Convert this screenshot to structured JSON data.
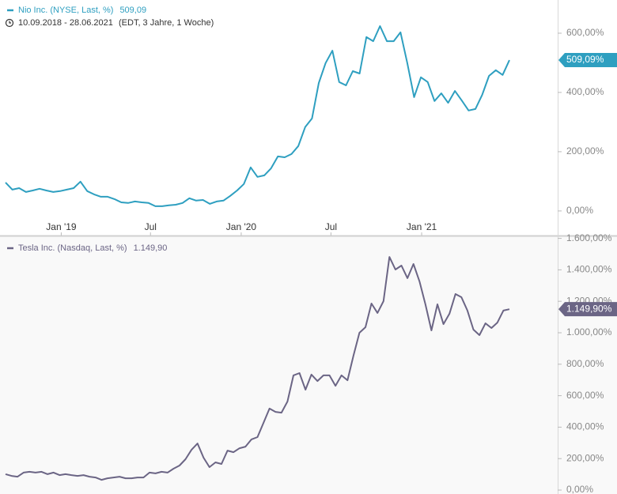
{
  "chart_data": [
    {
      "type": "line",
      "date_range": "10.09.2018 - 28.06.2021",
      "range_note": "(EDT, 3 Jahre, 1 Woche)",
      "series": [
        {
          "name": "Nio Inc. (NYSE, Last, %)",
          "color": "#2e9fc0",
          "last_value": 509.09,
          "last_legend_label": "509,09",
          "last_badge_label": "509,09%",
          "values": [
            96,
            72,
            77,
            64,
            69,
            75,
            69,
            64,
            67,
            72,
            77,
            99,
            67,
            56,
            48,
            48,
            40,
            29,
            27,
            32,
            29,
            27,
            16,
            16,
            19,
            21,
            27,
            43,
            35,
            37,
            24,
            32,
            35,
            51,
            69,
            91,
            147,
            115,
            120,
            144,
            184,
            181,
            192,
            219,
            283,
            312,
            432,
            499,
            541,
            435,
            424,
            472,
            464,
            587,
            573,
            624,
            573,
            573,
            603,
            499,
            384,
            451,
            435,
            371,
            397,
            365,
            405,
            373,
            339,
            344,
            392,
            456,
            475,
            459,
            509.09
          ]
        }
      ],
      "xticks": [
        {
          "value": "2019-01",
          "label": "Jan '19"
        },
        {
          "value": "2019-07",
          "label": "Jul"
        },
        {
          "value": "2020-01",
          "label": "Jan '20"
        },
        {
          "value": "2020-07",
          "label": "Jul"
        },
        {
          "value": "2021-01",
          "label": "Jan '21"
        }
      ],
      "ylim": [
        -83,
        712
      ],
      "yticks": [
        {
          "value": 0,
          "label": "0,00%"
        },
        {
          "value": 200,
          "label": "200,00%"
        },
        {
          "value": 400,
          "label": "400,00%"
        },
        {
          "value": 600,
          "label": "600,00%"
        }
      ]
    },
    {
      "type": "line",
      "series": [
        {
          "name": "Tesla Inc. (Nasdaq, Last, %)",
          "color": "#6b6585",
          "last_value": 1149.9,
          "last_legend_label": "1.149,90",
          "last_badge_label": "1.149,90%",
          "values": [
            101,
            90,
            85,
            111,
            116,
            111,
            116,
            101,
            111,
            95,
            101,
            95,
            90,
            95,
            85,
            80,
            65,
            75,
            80,
            85,
            75,
            75,
            80,
            80,
            111,
            106,
            116,
            111,
            136,
            156,
            196,
            256,
            296,
            206,
            146,
            176,
            166,
            251,
            241,
            266,
            276,
            322,
            337,
            427,
            518,
            497,
            492,
            563,
            729,
            744,
            638,
            734,
            693,
            729,
            729,
            663,
            729,
            698,
            854,
            1000,
            1035,
            1186,
            1126,
            1201,
            1482,
            1402,
            1427,
            1347,
            1437,
            1327,
            1181,
            1015,
            1181,
            1055,
            1121,
            1246,
            1226,
            1141,
            1020,
            985,
            1060,
            1030,
            1065,
            1141,
            1149.9
          ]
        }
      ],
      "ylim": [
        -25,
        1613
      ],
      "yticks": [
        {
          "value": 0,
          "label": "0,00%"
        },
        {
          "value": 200,
          "label": "200,00%"
        },
        {
          "value": 400,
          "label": "400,00%"
        },
        {
          "value": 600,
          "label": "600,00%"
        },
        {
          "value": 800,
          "label": "800,00%"
        },
        {
          "value": 1000,
          "label": "1.000,00%"
        },
        {
          "value": 1200,
          "label": "1.200,00%"
        },
        {
          "value": 1400,
          "label": "1.400,00%"
        },
        {
          "value": 1600,
          "label": "1.600,00%"
        }
      ]
    }
  ]
}
